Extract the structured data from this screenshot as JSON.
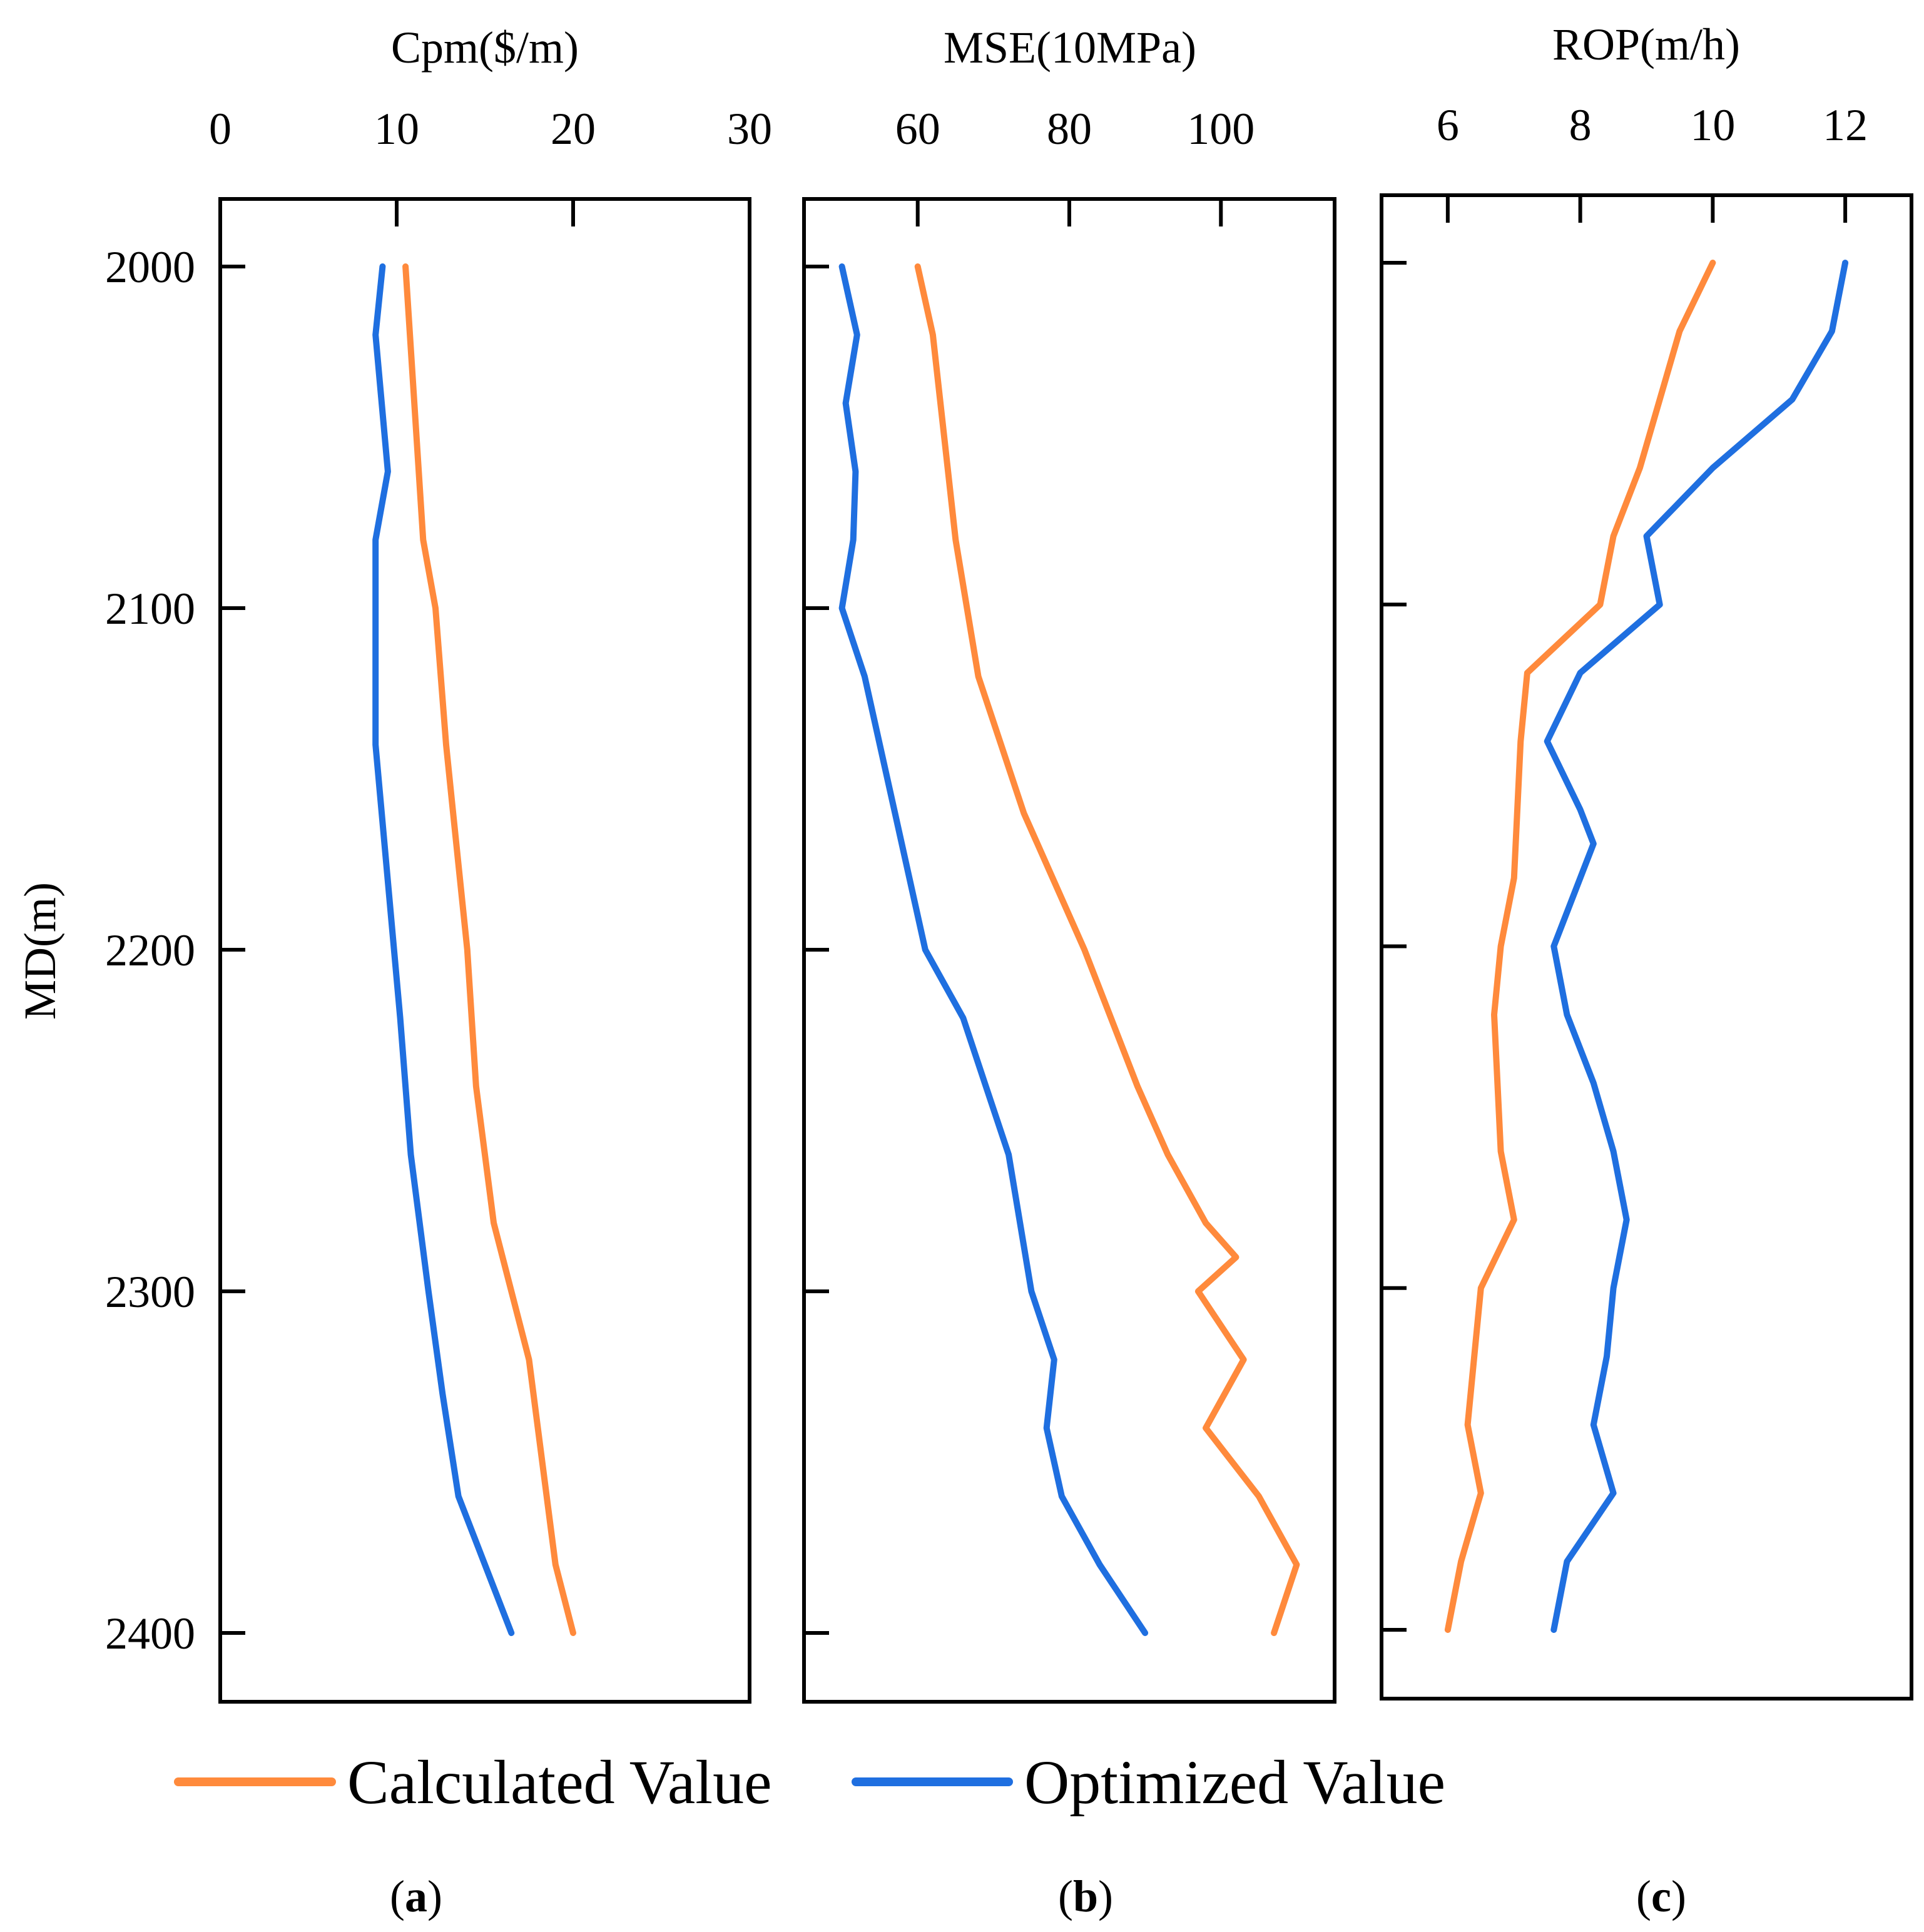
{
  "y_axis_title": "MD(m)",
  "legend": {
    "calculated": "Calculated Value",
    "optimized": "Optimized Value"
  },
  "colors": {
    "calculated": "#ff8a3c",
    "optimized": "#1f6fe0"
  },
  "chart_data": [
    {
      "type": "line",
      "panel": "(a)",
      "panel_letter": "a",
      "title": "Cpm($/m)",
      "xlabel": "Cpm($/m)",
      "ylabel": "MD(m)",
      "xlim": [
        0,
        30
      ],
      "xticks": [
        0,
        10,
        20,
        30
      ],
      "ylim": [
        2400,
        2000
      ],
      "yticks": [
        2000,
        2100,
        2200,
        2300,
        2400
      ],
      "series": [
        {
          "name": "Calculated Value",
          "points": [
            [
              10.5,
              2000
            ],
            [
              11.0,
              2040
            ],
            [
              11.5,
              2080
            ],
            [
              12.2,
              2100
            ],
            [
              12.8,
              2140
            ],
            [
              13.2,
              2160
            ],
            [
              14.0,
              2200
            ],
            [
              14.5,
              2240
            ],
            [
              15.5,
              2280
            ],
            [
              16.5,
              2300
            ],
            [
              17.5,
              2320
            ],
            [
              18.0,
              2340
            ],
            [
              19.0,
              2380
            ],
            [
              20.0,
              2400
            ]
          ]
        },
        {
          "name": "Optimized Value",
          "points": [
            [
              9.2,
              2000
            ],
            [
              8.8,
              2020
            ],
            [
              9.5,
              2060
            ],
            [
              8.8,
              2080
            ],
            [
              8.8,
              2100
            ],
            [
              8.8,
              2140
            ],
            [
              9.5,
              2180
            ],
            [
              10.2,
              2220
            ],
            [
              10.8,
              2260
            ],
            [
              11.8,
              2300
            ],
            [
              12.6,
              2330
            ],
            [
              13.5,
              2360
            ],
            [
              15.0,
              2380
            ],
            [
              16.5,
              2400
            ]
          ]
        }
      ]
    },
    {
      "type": "line",
      "panel": "(b)",
      "panel_letter": "b",
      "title": "MSE(10MPa)",
      "xlabel": "MSE(10MPa)",
      "ylabel": "MD(m)",
      "xlim": [
        45,
        115
      ],
      "xticks": [
        60,
        80,
        100
      ],
      "ylim": [
        2400,
        2000
      ],
      "yticks": [
        2000,
        2100,
        2200,
        2300,
        2400
      ],
      "series": [
        {
          "name": "Calculated Value",
          "points": [
            [
              60,
              2000
            ],
            [
              62,
              2020
            ],
            [
              64,
              2060
            ],
            [
              65,
              2080
            ],
            [
              68,
              2120
            ],
            [
              71,
              2140
            ],
            [
              74,
              2160
            ],
            [
              82,
              2200
            ],
            [
              89,
              2240
            ],
            [
              93,
              2260
            ],
            [
              98,
              2280
            ],
            [
              102,
              2290
            ],
            [
              97,
              2300
            ],
            [
              103,
              2320
            ],
            [
              98,
              2340
            ],
            [
              105,
              2360
            ],
            [
              110,
              2380
            ],
            [
              107,
              2400
            ]
          ]
        },
        {
          "name": "Optimized Value",
          "points": [
            [
              50,
              2000
            ],
            [
              52,
              2020
            ],
            [
              50.5,
              2040
            ],
            [
              51.8,
              2060
            ],
            [
              51.5,
              2080
            ],
            [
              50,
              2100
            ],
            [
              53,
              2120
            ],
            [
              57,
              2160
            ],
            [
              61,
              2200
            ],
            [
              66,
              2220
            ],
            [
              69,
              2240
            ],
            [
              72,
              2260
            ],
            [
              75,
              2300
            ],
            [
              78,
              2320
            ],
            [
              77,
              2340
            ],
            [
              79,
              2360
            ],
            [
              84,
              2380
            ],
            [
              90,
              2400
            ]
          ]
        }
      ]
    },
    {
      "type": "line",
      "panel": "(c)",
      "panel_letter": "c",
      "title": "ROP(m/h)",
      "xlabel": "ROP(m/h)",
      "ylabel": "MD(m)",
      "xlim": [
        5,
        13
      ],
      "xticks": [
        6,
        8,
        10,
        12
      ],
      "ylim": [
        2400,
        2000
      ],
      "yticks": [
        2000,
        2100,
        2200,
        2300,
        2400
      ],
      "series": [
        {
          "name": "Calculated Value",
          "points": [
            [
              10,
              2000
            ],
            [
              9.5,
              2020
            ],
            [
              9.2,
              2040
            ],
            [
              8.9,
              2060
            ],
            [
              8.5,
              2080
            ],
            [
              8.3,
              2100
            ],
            [
              7.2,
              2120
            ],
            [
              7.1,
              2140
            ],
            [
              7.0,
              2180
            ],
            [
              6.8,
              2200
            ],
            [
              6.7,
              2220
            ],
            [
              6.8,
              2260
            ],
            [
              7.0,
              2280
            ],
            [
              6.5,
              2300
            ],
            [
              6.4,
              2320
            ],
            [
              6.3,
              2340
            ],
            [
              6.5,
              2360
            ],
            [
              6.2,
              2380
            ],
            [
              6.0,
              2400
            ]
          ]
        },
        {
          "name": "Optimized Value",
          "points": [
            [
              12,
              2000
            ],
            [
              11.8,
              2020
            ],
            [
              11.2,
              2040
            ],
            [
              10,
              2060
            ],
            [
              9.0,
              2080
            ],
            [
              9.2,
              2100
            ],
            [
              8.0,
              2120
            ],
            [
              7.5,
              2140
            ],
            [
              8.0,
              2160
            ],
            [
              8.2,
              2170
            ],
            [
              7.6,
              2200
            ],
            [
              7.8,
              2220
            ],
            [
              8.2,
              2240
            ],
            [
              8.5,
              2260
            ],
            [
              8.7,
              2280
            ],
            [
              8.5,
              2300
            ],
            [
              8.4,
              2320
            ],
            [
              8.2,
              2340
            ],
            [
              8.5,
              2360
            ],
            [
              7.8,
              2380
            ],
            [
              7.6,
              2400
            ]
          ]
        }
      ]
    }
  ]
}
